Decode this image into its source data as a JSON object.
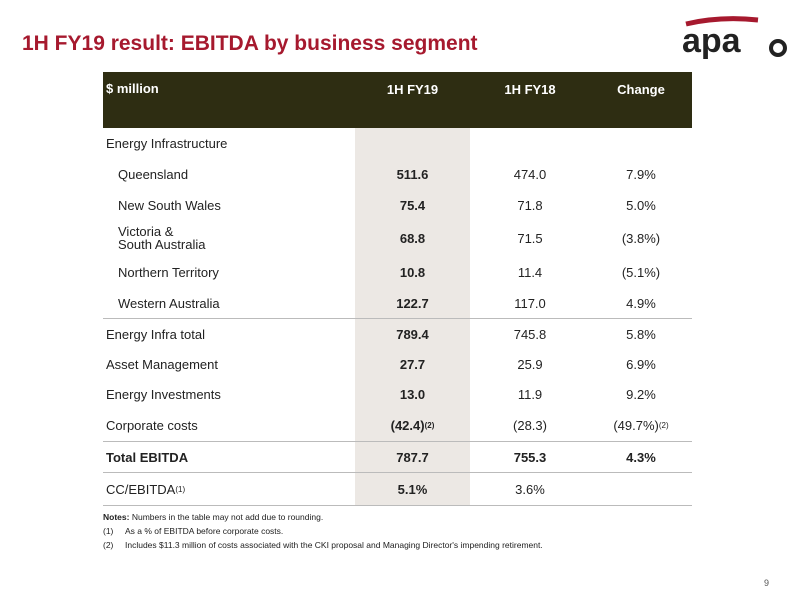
{
  "header": {
    "title": "1H FY19 result: EBITDA by business segment",
    "logo": "apa"
  },
  "table": {
    "columns": [
      "$ million",
      "1H FY19",
      "1H FY18",
      "Change"
    ],
    "rows": [
      {
        "label": "Energy Infrastructure"
      },
      {
        "label": "Queensland",
        "fy19": "511.6",
        "fy18": "474.0",
        "change": "7.9%"
      },
      {
        "label": "New South Wales",
        "fy19": "75.4",
        "fy18": "71.8",
        "change": "5.0%"
      },
      {
        "label": "Victoria &\nSouth Australia",
        "fy19": "68.8",
        "fy18": "71.5",
        "change": "(3.8%)"
      },
      {
        "label": "Northern Territory",
        "fy19": "10.8",
        "fy18": "11.4",
        "change": "(5.1%)"
      },
      {
        "label": "Western Australia",
        "fy19": "122.7",
        "fy18": "117.0",
        "change": "4.9%"
      },
      {
        "label": "Energy Infra total",
        "fy19": "789.4",
        "fy18": "745.8",
        "change": "5.8%"
      },
      {
        "label": "Asset Management",
        "fy19": "27.7",
        "fy18": "25.9",
        "change": "6.9%"
      },
      {
        "label": "Energy Investments",
        "fy19": "13.0",
        "fy18": "11.9",
        "change": "9.2%"
      },
      {
        "label": "Corporate costs",
        "fy19": "(42.4)",
        "fy19_note": "(2)",
        "fy18": "(28.3)",
        "change": "(49.7%)",
        "change_note": "(2)"
      },
      {
        "label": "Total EBITDA",
        "fy19": "787.7",
        "fy18": "755.3",
        "change": "4.3%"
      },
      {
        "label": "CC/EBITDA",
        "label_note": "(1)",
        "fy19": "5.1%",
        "fy18": "3.6%"
      }
    ]
  },
  "notes": {
    "heading": "Notes:",
    "text": "Numbers in the table may not add due to rounding.",
    "items": [
      {
        "marker": "(1)",
        "text": "As a % of EBITDA before corporate costs."
      },
      {
        "marker": "(2)",
        "text": "Includes $11.3 million of costs associated with the CKI proposal and Managing Director's impending retirement."
      }
    ]
  },
  "page_number": "9"
}
